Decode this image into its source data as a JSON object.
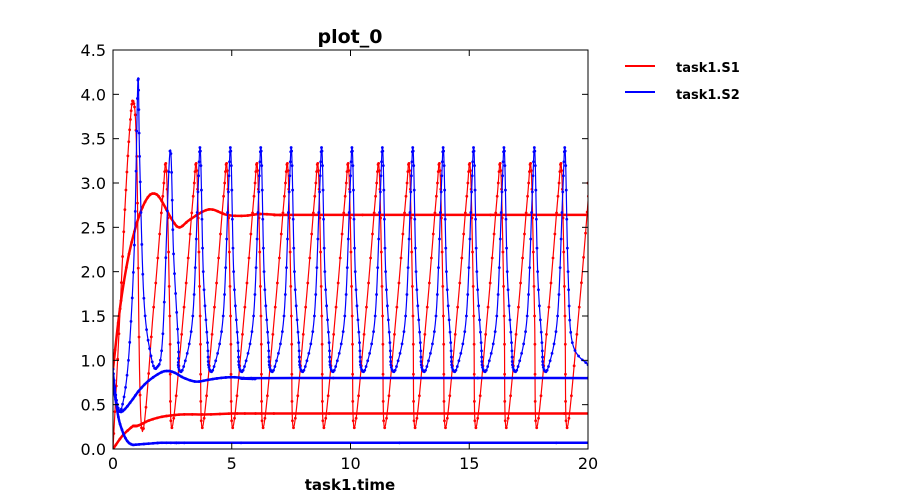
{
  "chart_data": {
    "type": "line",
    "title": "plot_0",
    "xlabel": "task1.time",
    "ylabel": "",
    "xlim": [
      0,
      20
    ],
    "ylim": [
      0,
      4.5
    ],
    "xticks": [
      "0",
      "5",
      "10",
      "15",
      "20"
    ],
    "yticks": [
      "0.0",
      "0.5",
      "1.0",
      "1.5",
      "2.0",
      "2.5",
      "3.0",
      "3.5",
      "4.0",
      "4.5"
    ],
    "grid": false,
    "legend_position": "outside-top-right",
    "series": [
      {
        "name": "task1.S1",
        "color": "#ff0000",
        "lines": [
          {
            "x": [
              0,
              0.4,
              0.8,
              0.9,
              1.0,
              1.2,
              1.5,
              2.0,
              2.5,
              3.0,
              4.0,
              5.0,
              6.0,
              8.0,
              20.0
            ],
            "y": [
              0.0,
              0.15,
              0.25,
              0.26,
              0.26,
              0.28,
              0.32,
              0.36,
              0.38,
              0.39,
              0.39,
              0.4,
              0.4,
              0.4,
              0.4
            ]
          },
          {
            "x": [
              0,
              0.3,
              0.6,
              0.9,
              1.2,
              1.5,
              1.75,
              2.0,
              2.5,
              2.8,
              3.2,
              3.8,
              4.2,
              4.8,
              5.5,
              6.2,
              7.0,
              8.0,
              20.0
            ],
            "y": [
              0.9,
              1.6,
              2.1,
              2.45,
              2.7,
              2.85,
              2.88,
              2.82,
              2.58,
              2.5,
              2.58,
              2.68,
              2.7,
              2.64,
              2.63,
              2.65,
              2.64,
              2.64,
              2.64
            ]
          }
        ],
        "oscillation": {
          "initial_peak": {
            "t": 0.85,
            "y": 3.92
          },
          "period": 1.28,
          "max": 3.14,
          "min": 0.24,
          "first_min_t": 1.2,
          "last_t": 20.0,
          "end_value": 3.0
        }
      },
      {
        "name": "task1.S2",
        "color": "#0000ff",
        "lines": [
          {
            "x": [
              0,
              0.2,
              0.4,
              0.6,
              0.8,
              1.0,
              1.5,
              2.0,
              2.5,
              3.0,
              4.0,
              20.0
            ],
            "y": [
              0.85,
              0.4,
              0.2,
              0.09,
              0.05,
              0.05,
              0.06,
              0.07,
              0.07,
              0.07,
              0.07,
              0.07
            ]
          },
          {
            "x": [
              0,
              0.15,
              0.3,
              0.5,
              0.8,
              1.1,
              1.5,
              2.0,
              2.3,
              2.6,
              3.0,
              3.5,
              4.0,
              4.5,
              5.0,
              5.5,
              6.0,
              6.5,
              20.0
            ],
            "y": [
              0.75,
              0.5,
              0.42,
              0.45,
              0.55,
              0.66,
              0.77,
              0.86,
              0.88,
              0.86,
              0.8,
              0.76,
              0.78,
              0.8,
              0.81,
              0.8,
              0.79,
              0.8,
              0.8
            ]
          }
        ],
        "oscillation": {
          "spike_peak": {
            "t": 1.05,
            "y": 4.16
          },
          "spike_min": {
            "t": 0.35,
            "y": 0.45
          },
          "second_peak": {
            "t": 2.4,
            "y": 3.36
          },
          "period": 1.28,
          "max": 3.36,
          "min": 0.9,
          "last_t": 20.0,
          "end_value": 0.95
        }
      }
    ]
  }
}
